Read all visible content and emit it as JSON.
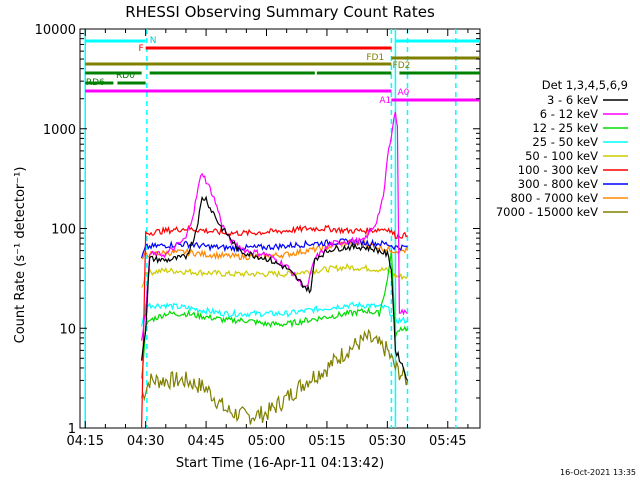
{
  "chart_data": {
    "type": "line",
    "title": "RHESSI Observing Summary Count Rates",
    "xlabel": "Start Time (16-Apr-11 04:13:42)",
    "ylabel": "Count Rate (s⁻¹ detector⁻¹)",
    "yscale": "log",
    "ylim": [
      1,
      10000
    ],
    "xlim_minutes": [
      253.7,
      353
    ],
    "x_ticks": [
      {
        "label": "04:15",
        "min": 255
      },
      {
        "label": "04:30",
        "min": 270
      },
      {
        "label": "04:45",
        "min": 285
      },
      {
        "label": "05:00",
        "min": 300
      },
      {
        "label": "05:15",
        "min": 315
      },
      {
        "label": "05:30",
        "min": 330
      },
      {
        "label": "05:45",
        "min": 345
      }
    ],
    "y_ticks": [
      {
        "label": "1",
        "v": 1
      },
      {
        "label": "10",
        "v": 10
      },
      {
        "label": "100",
        "v": 100
      },
      {
        "label": "1000",
        "v": 1000
      },
      {
        "label": "10000",
        "v": 10000
      }
    ],
    "legend_title": "Det 1,3,4,5,6,9",
    "legend_position": "right",
    "series": [
      {
        "name": "3 - 6 keV",
        "color": "#000000",
        "points": [
          [
            269,
            5
          ],
          [
            270,
            10
          ],
          [
            271,
            50
          ],
          [
            275,
            48
          ],
          [
            280,
            52
          ],
          [
            282,
            80
          ],
          [
            283,
            120
          ],
          [
            284,
            200
          ],
          [
            285,
            200
          ],
          [
            286,
            160
          ],
          [
            287,
            140
          ],
          [
            288,
            115
          ],
          [
            289,
            100
          ],
          [
            290,
            90
          ],
          [
            291,
            80
          ],
          [
            292,
            70
          ],
          [
            293,
            60
          ],
          [
            296,
            55
          ],
          [
            300,
            50
          ],
          [
            305,
            40
          ],
          [
            308,
            30
          ],
          [
            310,
            25
          ],
          [
            311,
            24
          ],
          [
            312,
            50
          ],
          [
            316,
            62
          ],
          [
            320,
            65
          ],
          [
            324,
            65
          ],
          [
            327,
            62
          ],
          [
            330,
            55
          ],
          [
            331,
            40
          ],
          [
            332,
            6
          ],
          [
            333,
            5
          ],
          [
            334,
            4
          ],
          [
            335,
            3
          ]
        ]
      },
      {
        "name": "6 - 12 keV",
        "color": "#ff00ff",
        "points": [
          [
            269,
            8
          ],
          [
            270,
            14
          ],
          [
            271,
            55
          ],
          [
            275,
            55
          ],
          [
            280,
            80
          ],
          [
            282,
            150
          ],
          [
            283,
            250
          ],
          [
            284,
            370
          ],
          [
            285,
            300
          ],
          [
            286,
            250
          ],
          [
            287,
            200
          ],
          [
            288,
            150
          ],
          [
            289,
            110
          ],
          [
            290,
            90
          ],
          [
            291,
            75
          ],
          [
            295,
            60
          ],
          [
            300,
            55
          ],
          [
            305,
            42
          ],
          [
            308,
            30
          ],
          [
            310,
            25
          ],
          [
            312,
            50
          ],
          [
            316,
            70
          ],
          [
            320,
            75
          ],
          [
            324,
            75
          ],
          [
            327,
            110
          ],
          [
            329,
            200
          ],
          [
            330,
            500
          ],
          [
            331,
            900
          ],
          [
            332,
            1500
          ],
          [
            332.5,
            1000
          ],
          [
            333,
            15
          ],
          [
            335,
            14
          ]
        ]
      },
      {
        "name": "12 - 25 keV",
        "color": "#00dd00",
        "points": [
          [
            269,
            3
          ],
          [
            270,
            10
          ],
          [
            271,
            12
          ],
          [
            275,
            14
          ],
          [
            280,
            14
          ],
          [
            285,
            13
          ],
          [
            290,
            12
          ],
          [
            295,
            12
          ],
          [
            300,
            11
          ],
          [
            305,
            11
          ],
          [
            310,
            12
          ],
          [
            315,
            13
          ],
          [
            320,
            14
          ],
          [
            325,
            15
          ],
          [
            328,
            14
          ],
          [
            330,
            30
          ],
          [
            331,
            60
          ],
          [
            332,
            8
          ],
          [
            333,
            10
          ],
          [
            335,
            10
          ]
        ]
      },
      {
        "name": "25 - 50 keV",
        "color": "#00ffff",
        "points": [
          [
            269,
            10
          ],
          [
            270,
            17
          ],
          [
            275,
            17
          ],
          [
            280,
            16
          ],
          [
            285,
            15
          ],
          [
            290,
            14
          ],
          [
            295,
            14
          ],
          [
            300,
            14
          ],
          [
            305,
            14
          ],
          [
            310,
            15
          ],
          [
            315,
            16
          ],
          [
            320,
            17
          ],
          [
            325,
            17
          ],
          [
            330,
            16
          ],
          [
            332,
            12
          ],
          [
            335,
            12
          ]
        ]
      },
      {
        "name": "50 - 100 keV",
        "color": "#cccc00",
        "points": [
          [
            269,
            25
          ],
          [
            270,
            36
          ],
          [
            275,
            38
          ],
          [
            280,
            37
          ],
          [
            285,
            36
          ],
          [
            290,
            35
          ],
          [
            295,
            35
          ],
          [
            300,
            35
          ],
          [
            305,
            35
          ],
          [
            310,
            37
          ],
          [
            315,
            39
          ],
          [
            320,
            41
          ],
          [
            325,
            40
          ],
          [
            330,
            38
          ],
          [
            332,
            33
          ],
          [
            335,
            33
          ]
        ]
      },
      {
        "name": "100 - 300 keV",
        "color": "#ff0000",
        "points": [
          [
            269,
            1
          ],
          [
            270,
            90
          ],
          [
            275,
            95
          ],
          [
            280,
            100
          ],
          [
            285,
            95
          ],
          [
            290,
            90
          ],
          [
            295,
            90
          ],
          [
            300,
            92
          ],
          [
            305,
            95
          ],
          [
            310,
            100
          ],
          [
            315,
            100
          ],
          [
            320,
            95
          ],
          [
            325,
            95
          ],
          [
            330,
            100
          ],
          [
            332,
            85
          ],
          [
            335,
            85
          ]
        ]
      },
      {
        "name": "300 - 800 keV",
        "color": "#0000ff",
        "points": [
          [
            269,
            50
          ],
          [
            270,
            65
          ],
          [
            275,
            68
          ],
          [
            280,
            70
          ],
          [
            285,
            66
          ],
          [
            290,
            64
          ],
          [
            295,
            64
          ],
          [
            300,
            65
          ],
          [
            305,
            67
          ],
          [
            310,
            70
          ],
          [
            315,
            72
          ],
          [
            320,
            74
          ],
          [
            325,
            72
          ],
          [
            330,
            70
          ],
          [
            332,
            65
          ],
          [
            335,
            65
          ]
        ]
      },
      {
        "name": "800 - 7000 keV",
        "color": "#ff8800",
        "points": [
          [
            269,
            48
          ],
          [
            270,
            55
          ],
          [
            275,
            57
          ],
          [
            280,
            58
          ],
          [
            285,
            55
          ],
          [
            290,
            53
          ],
          [
            295,
            52
          ],
          [
            300,
            53
          ],
          [
            305,
            55
          ],
          [
            310,
            60
          ],
          [
            315,
            65
          ],
          [
            320,
            72
          ],
          [
            325,
            70
          ],
          [
            330,
            62
          ],
          [
            332,
            60
          ],
          [
            335,
            60
          ]
        ]
      },
      {
        "name": "7000 - 15000 keV",
        "color": "#808000",
        "points": [
          [
            269,
            2
          ],
          [
            271,
            3
          ],
          [
            275,
            3
          ],
          [
            280,
            3
          ],
          [
            285,
            2.5
          ],
          [
            290,
            1.5
          ],
          [
            295,
            1.3
          ],
          [
            300,
            1.4
          ],
          [
            305,
            2
          ],
          [
            310,
            3
          ],
          [
            315,
            4
          ],
          [
            320,
            6
          ],
          [
            325,
            8
          ],
          [
            330,
            6
          ],
          [
            332,
            4
          ],
          [
            335,
            3
          ]
        ]
      }
    ],
    "state_bars": [
      {
        "label": "N",
        "color": "#00ffff",
        "segments": [
          [
            255,
            270
          ],
          [
            332,
            353
          ]
        ]
      },
      {
        "label": "F",
        "color": "#ff0000",
        "segments": [
          [
            270,
            331
          ]
        ]
      },
      {
        "label": "FD1",
        "color": "#808000",
        "segments": [
          [
            255,
            331
          ]
        ]
      },
      {
        "label": "FD2",
        "color": "#808000",
        "segments": [
          [
            331,
            353
          ]
        ]
      },
      {
        "label": "RD0",
        "color": "#008000",
        "segments": [
          [
            255,
            269
          ],
          [
            271,
            312
          ],
          [
            312.5,
            331
          ],
          [
            333,
            353
          ]
        ]
      },
      {
        "label": "RD6",
        "color": "#008000",
        "segments": [
          [
            255,
            262
          ],
          [
            263,
            270
          ]
        ]
      },
      {
        "label": "A1",
        "color": "#ff00ff",
        "segments": [
          [
            255,
            331
          ]
        ]
      },
      {
        "label": "A0",
        "color": "#ff00ff",
        "segments": [
          [
            331,
            353
          ]
        ]
      }
    ],
    "vlines_minutes": [
      255,
      270.3,
      331,
      332,
      335,
      347
    ]
  },
  "footer": {
    "date": "16-Oct-2021 13:35"
  }
}
